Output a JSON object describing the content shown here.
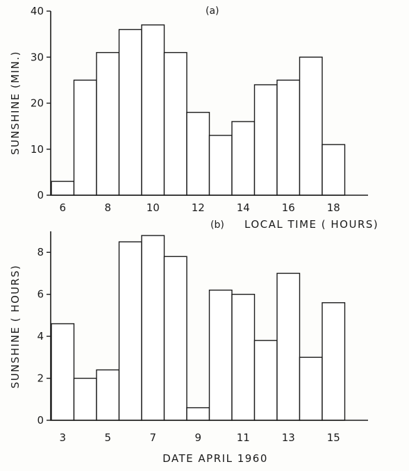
{
  "chart_data": [
    {
      "type": "bar",
      "panel_label": "(a)",
      "title": "",
      "xlabel": "LOCAL TIME ( HOURS)",
      "ylabel": "SUNSHINE  (MIN.)",
      "x": [
        6,
        7,
        8,
        9,
        10,
        11,
        12,
        13,
        14,
        15,
        16,
        17,
        18
      ],
      "values": [
        3,
        25,
        31,
        36,
        37,
        31,
        18,
        13,
        16,
        24,
        25,
        30,
        11
      ],
      "xlim": [
        5.5,
        19.7
      ],
      "ylim": [
        0,
        40
      ],
      "xticks": [
        "6",
        "8",
        "10",
        "12",
        "14",
        "16",
        "18"
      ],
      "yticks": [
        "0",
        "10",
        "20",
        "30",
        "40"
      ],
      "grid": false
    },
    {
      "type": "bar",
      "panel_label": "(b)",
      "title": "",
      "xlabel": "DATE  APRIL  1960",
      "ylabel": "SUNSHINE ( HOURS)",
      "x": [
        3,
        4,
        5,
        6,
        7,
        8,
        9,
        10,
        11,
        12,
        13,
        14,
        15
      ],
      "values": [
        4.6,
        2.0,
        2.4,
        8.5,
        8.8,
        7.8,
        0.6,
        6.2,
        6.0,
        3.8,
        7.0,
        3.0,
        5.6
      ],
      "xlim": [
        2.5,
        16.7
      ],
      "ylim": [
        0,
        9
      ],
      "xticks": [
        "3",
        "5",
        "7",
        "9",
        "11",
        "13",
        "15"
      ],
      "yticks": [
        "0",
        "2",
        "4",
        "6",
        "8"
      ],
      "grid": false
    }
  ]
}
